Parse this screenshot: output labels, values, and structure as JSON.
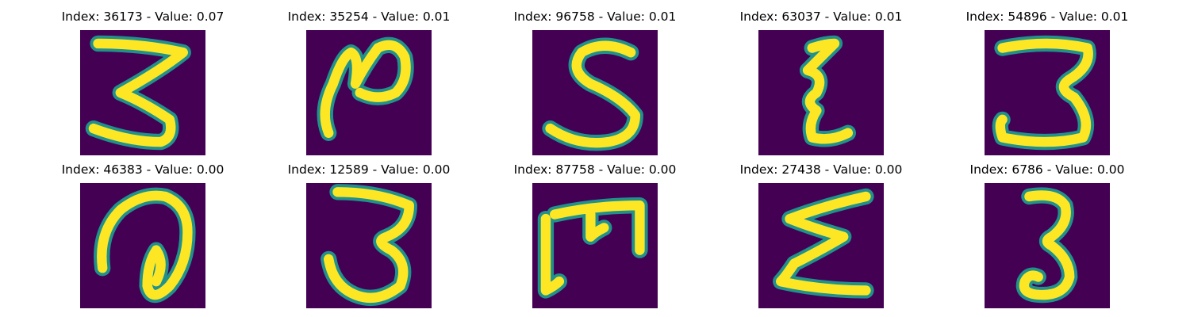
{
  "colors": {
    "background": "#440154",
    "stroke_core": "#fde725",
    "stroke_edge": "#21918c",
    "stroke_mid": "#5ec962"
  },
  "panels": [
    {
      "title": "Index: 36173 - Value: 0.07",
      "glyph": "3"
    },
    {
      "title": "Index: 35254 - Value: 0.01",
      "glyph": "N"
    },
    {
      "title": "Index: 96758 - Value: 0.01",
      "glyph": "S"
    },
    {
      "title": "Index: 63037 - Value: 0.01",
      "glyph": "3"
    },
    {
      "title": "Index: 54896 - Value: 0.01",
      "glyph": "3"
    },
    {
      "title": "Index: 46383 - Value: 0.00",
      "glyph": "a"
    },
    {
      "title": "Index: 12589 - Value: 0.00",
      "glyph": "3"
    },
    {
      "title": "Index: 87758 - Value: 0.00",
      "glyph": "m"
    },
    {
      "title": "Index: 27438 - Value: 0.00",
      "glyph": "3"
    },
    {
      "title": "Index: 6786 - Value: 0.00",
      "glyph": "3"
    }
  ]
}
